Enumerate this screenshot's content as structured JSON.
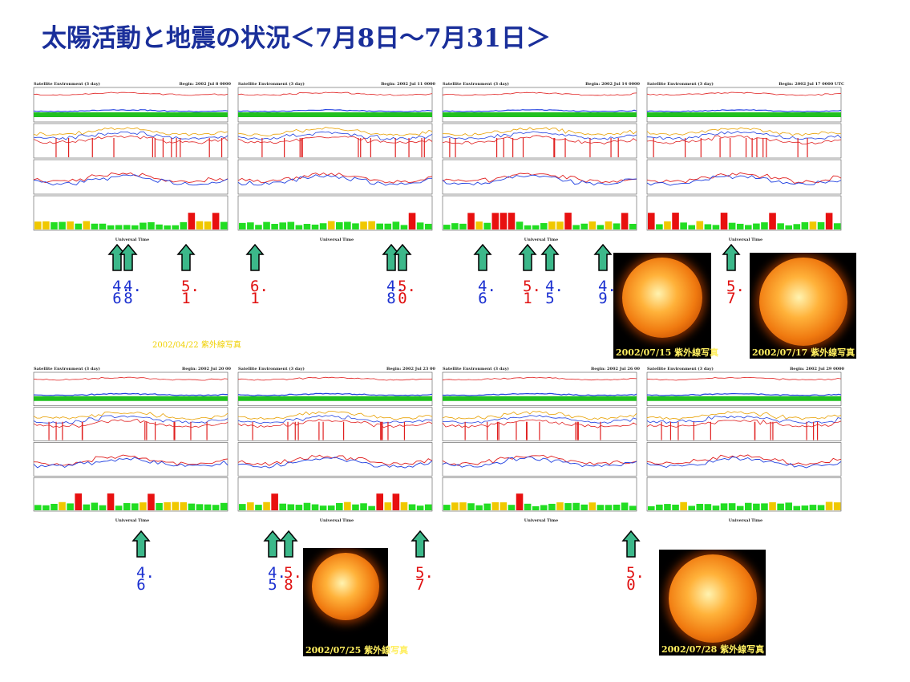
{
  "header": {
    "title": "太陽活動と地震の状況＜7月8日～7月31日＞"
  },
  "panels": [
    {
      "heading": "Satellite Environment (3 day)",
      "begin": "Begin: 2002 Jul 8 0000",
      "axis": "Universal Time"
    },
    {
      "heading": "Satellite Environment (3 day)",
      "begin": "Begin: 2002 Jul 11 0000",
      "axis": "Universal Time"
    },
    {
      "heading": "Satellite Environment (3 day)",
      "begin": "Begin: 2002 Jul 14 0000",
      "axis": "Universal Time"
    },
    {
      "heading": "Satellite Environment (3 day)",
      "begin": "Begin: 2002 Jul 17 0000 UTC",
      "axis": "Universal Time"
    },
    {
      "heading": "Satellite Environment (3 day)",
      "begin": "Begin: 2002 Jul 20 00",
      "axis": "Universal Time"
    },
    {
      "heading": "Satellite Environment (3 day)",
      "begin": "Begin: 2002 Jul 23 00",
      "axis": "Universal Time"
    },
    {
      "heading": "Satellite Environment (3 day)",
      "begin": "Begin: 2002 Jul 26 00",
      "axis": "Universal Time"
    },
    {
      "heading": "Satellite Environment (3 day)",
      "begin": "Begin: 2002 Jul 29 0000",
      "axis": "Universal Time"
    }
  ],
  "magnitudes": [
    {
      "text": "4.6",
      "color": "#1a2fd0"
    },
    {
      "text": "4.8",
      "color": "#1a2fd0"
    },
    {
      "text": "5.1",
      "color": "#e01010"
    },
    {
      "text": "6.1",
      "color": "#e01010"
    },
    {
      "text": "4.8",
      "color": "#1a2fd0"
    },
    {
      "text": "5.0",
      "color": "#e01010"
    },
    {
      "text": "4.6",
      "color": "#1a2fd0"
    },
    {
      "text": "5.1",
      "color": "#e01010"
    },
    {
      "text": "4.5",
      "color": "#1a2fd0"
    },
    {
      "text": "4.9",
      "color": "#1a2fd0"
    },
    {
      "text": "5.7",
      "color": "#e01010"
    },
    {
      "text": "4.6",
      "color": "#1a2fd0"
    },
    {
      "text": "4.5",
      "color": "#1a2fd0"
    },
    {
      "text": "5.8",
      "color": "#e01010"
    },
    {
      "text": "5.7",
      "color": "#e01010"
    },
    {
      "text": "5.0",
      "color": "#e01010"
    }
  ],
  "images": [
    {
      "caption": "2002/07/15 紫外線写真"
    },
    {
      "caption": "2002/07/17 紫外線写真"
    },
    {
      "caption": "2002/07/25 紫外線写真"
    },
    {
      "caption": "2002/07/28 紫外線写真"
    }
  ],
  "note": "2002/04/22 紫外線写真"
}
